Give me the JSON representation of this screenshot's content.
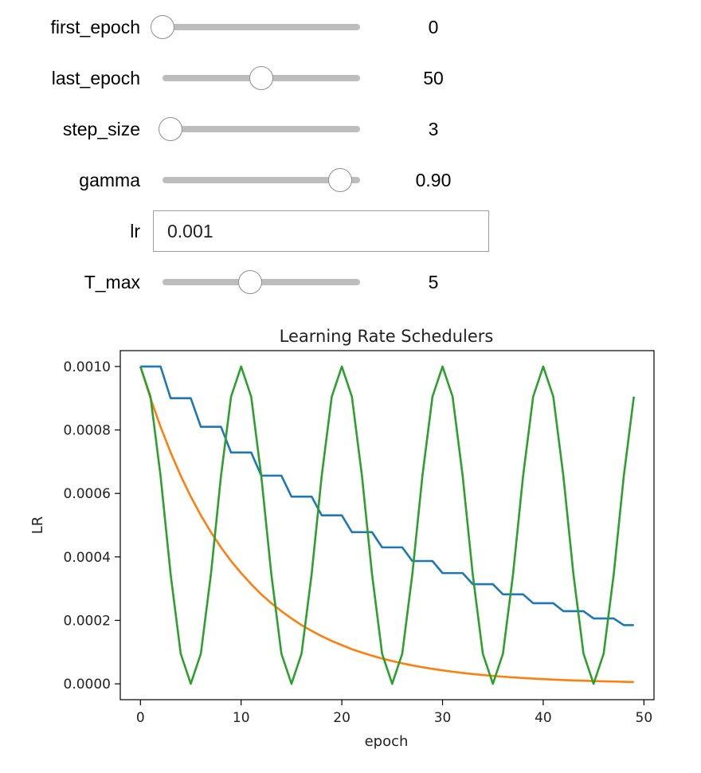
{
  "controls": {
    "first_epoch": {
      "label": "first_epoch",
      "value": 0,
      "min": 0,
      "max": 100,
      "display": "0"
    },
    "last_epoch": {
      "label": "last_epoch",
      "value": 50,
      "min": 0,
      "max": 100,
      "display": "50"
    },
    "step_size": {
      "label": "step_size",
      "value": 3,
      "min": 1,
      "max": 50,
      "display": "3"
    },
    "gamma": {
      "label": "gamma",
      "value": 0.9,
      "min": 0,
      "max": 1,
      "display": "0.90"
    },
    "lr": {
      "label": "lr",
      "value": "0.001"
    },
    "T_max": {
      "label": "T_max",
      "value": 5,
      "min": 1,
      "max": 10,
      "display": "5"
    }
  },
  "colors": {
    "slider_track": "#bdbdbd",
    "thumb_border": "#8e8e8e"
  },
  "chart_data": {
    "type": "line",
    "title": "Learning Rate Schedulers",
    "xlabel": "epoch",
    "ylabel": "LR",
    "xlim": [
      -2,
      51
    ],
    "ylim": [
      -5e-05,
      0.00105
    ],
    "xticks": [
      0,
      10,
      20,
      30,
      40,
      50
    ],
    "xtick_labels": [
      "0",
      "10",
      "20",
      "30",
      "40",
      "50"
    ],
    "yticks": [
      0,
      0.0002,
      0.0004,
      0.0006,
      0.0008,
      0.001
    ],
    "ytick_labels": [
      "0.0000",
      "0.0002",
      "0.0004",
      "0.0006",
      "0.0008",
      "0.0010"
    ],
    "grid": false,
    "x": [
      0,
      1,
      2,
      3,
      4,
      5,
      6,
      7,
      8,
      9,
      10,
      11,
      12,
      13,
      14,
      15,
      16,
      17,
      18,
      19,
      20,
      21,
      22,
      23,
      24,
      25,
      26,
      27,
      28,
      29,
      30,
      31,
      32,
      33,
      34,
      35,
      36,
      37,
      38,
      39,
      40,
      41,
      42,
      43,
      44,
      45,
      46,
      47,
      48,
      49
    ],
    "series": [
      {
        "color": "#1f77b4",
        "values": [
          0.001,
          0.001,
          0.001,
          0.0009,
          0.0009,
          0.0009,
          0.00081,
          0.00081,
          0.00081,
          0.000729,
          0.000729,
          0.000729,
          0.000656,
          0.000656,
          0.000656,
          0.00059,
          0.00059,
          0.00059,
          0.000531,
          0.000531,
          0.000531,
          0.000478,
          0.000478,
          0.000478,
          0.00043,
          0.00043,
          0.00043,
          0.000387,
          0.000387,
          0.000387,
          0.000349,
          0.000349,
          0.000349,
          0.000314,
          0.000314,
          0.000314,
          0.000282,
          0.000282,
          0.000282,
          0.000254,
          0.000254,
          0.000254,
          0.000229,
          0.000229,
          0.000229,
          0.000206,
          0.000206,
          0.000206,
          0.000185,
          0.000185
        ]
      },
      {
        "color": "#ff7f0e",
        "values": [
          0.001,
          0.0009,
          0.00081,
          0.000729,
          0.000656,
          0.00059,
          0.000531,
          0.000478,
          0.00043,
          0.000387,
          0.000349,
          0.000314,
          0.000282,
          0.000254,
          0.000229,
          0.000206,
          0.000185,
          0.000167,
          0.00015,
          0.000135,
          0.000122,
          0.000109,
          9.85e-05,
          8.86e-05,
          7.98e-05,
          7.18e-05,
          6.46e-05,
          5.81e-05,
          5.23e-05,
          4.71e-05,
          4.24e-05,
          3.82e-05,
          3.43e-05,
          3.09e-05,
          2.78e-05,
          2.5e-05,
          2.25e-05,
          2.03e-05,
          1.82e-05,
          1.64e-05,
          1.48e-05,
          1.33e-05,
          1.2e-05,
          1.08e-05,
          9.7e-06,
          8.7e-06,
          7.9e-06,
          7.1e-06,
          6.4e-06,
          5.7e-06
        ]
      },
      {
        "color": "#2ca02c",
        "values": [
          0.001,
          0.000905,
          0.000655,
          0.000345,
          9.5e-05,
          0,
          9.5e-05,
          0.000345,
          0.000655,
          0.000905,
          0.001,
          0.000905,
          0.000655,
          0.000345,
          9.5e-05,
          0,
          9.5e-05,
          0.000345,
          0.000655,
          0.000905,
          0.001,
          0.000905,
          0.000655,
          0.000345,
          9.5e-05,
          0,
          9.5e-05,
          0.000345,
          0.000655,
          0.000905,
          0.001,
          0.000905,
          0.000655,
          0.000345,
          9.5e-05,
          0,
          9.5e-05,
          0.000345,
          0.000655,
          0.000905,
          0.001,
          0.000905,
          0.000655,
          0.000345,
          9.5e-05,
          0,
          9.5e-05,
          0.000345,
          0.000655,
          0.000905
        ]
      }
    ]
  }
}
